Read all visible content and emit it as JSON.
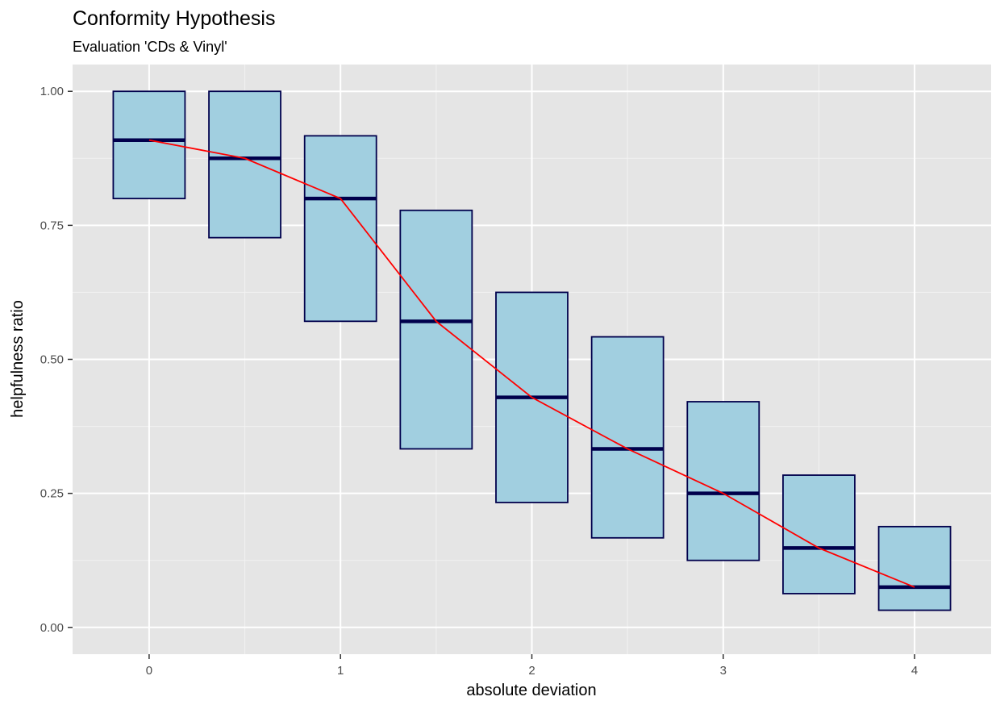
{
  "chart_data": {
    "type": "boxplot",
    "title": "Conformity Hypothesis",
    "subtitle": "Evaluation 'CDs & Vinyl'",
    "xlabel": "absolute deviation",
    "ylabel": "helpfulness ratio",
    "xlim": [
      -0.4,
      4.4
    ],
    "ylim": [
      -0.05,
      1.05
    ],
    "x_ticks": [
      0,
      1,
      2,
      3,
      4
    ],
    "x_tick_labels": [
      "0",
      "1",
      "2",
      "3",
      "4"
    ],
    "y_ticks": [
      0,
      0.25,
      0.5,
      0.75,
      1.0
    ],
    "y_tick_labels": [
      "0.00",
      "0.25",
      "0.50",
      "0.75",
      "1.00"
    ],
    "grid": true,
    "boxes": [
      {
        "x": 0.0,
        "q1": 0.8,
        "median": 0.909,
        "q3": 1.0
      },
      {
        "x": 0.5,
        "q1": 0.727,
        "median": 0.875,
        "q3": 1.0
      },
      {
        "x": 1.0,
        "q1": 0.571,
        "median": 0.8,
        "q3": 0.917
      },
      {
        "x": 1.5,
        "q1": 0.333,
        "median": 0.571,
        "q3": 0.778
      },
      {
        "x": 2.0,
        "q1": 0.233,
        "median": 0.429,
        "q3": 0.625
      },
      {
        "x": 2.5,
        "q1": 0.167,
        "median": 0.333,
        "q3": 0.542
      },
      {
        "x": 3.0,
        "q1": 0.125,
        "median": 0.25,
        "q3": 0.421
      },
      {
        "x": 3.5,
        "q1": 0.063,
        "median": 0.148,
        "q3": 0.284
      },
      {
        "x": 4.0,
        "q1": 0.032,
        "median": 0.075,
        "q3": 0.188
      }
    ],
    "box_width": 0.375,
    "median_line": {
      "x": [
        0,
        0.5,
        1.0,
        1.5,
        2.0,
        2.5,
        3.0,
        3.5,
        4.0
      ],
      "y": [
        0.909,
        0.875,
        0.8,
        0.571,
        0.429,
        0.333,
        0.25,
        0.148,
        0.075
      ]
    }
  },
  "colors": {
    "panel_background": "#e5e5e5",
    "grid_major": "#ffffff",
    "grid_minor": "#f2f2f2",
    "box_fill": "#a1cfe0",
    "box_outline": "#00004c",
    "median_line": "#ff0000",
    "tick_label": "#4d4d4d",
    "tick_mark": "#333333"
  }
}
